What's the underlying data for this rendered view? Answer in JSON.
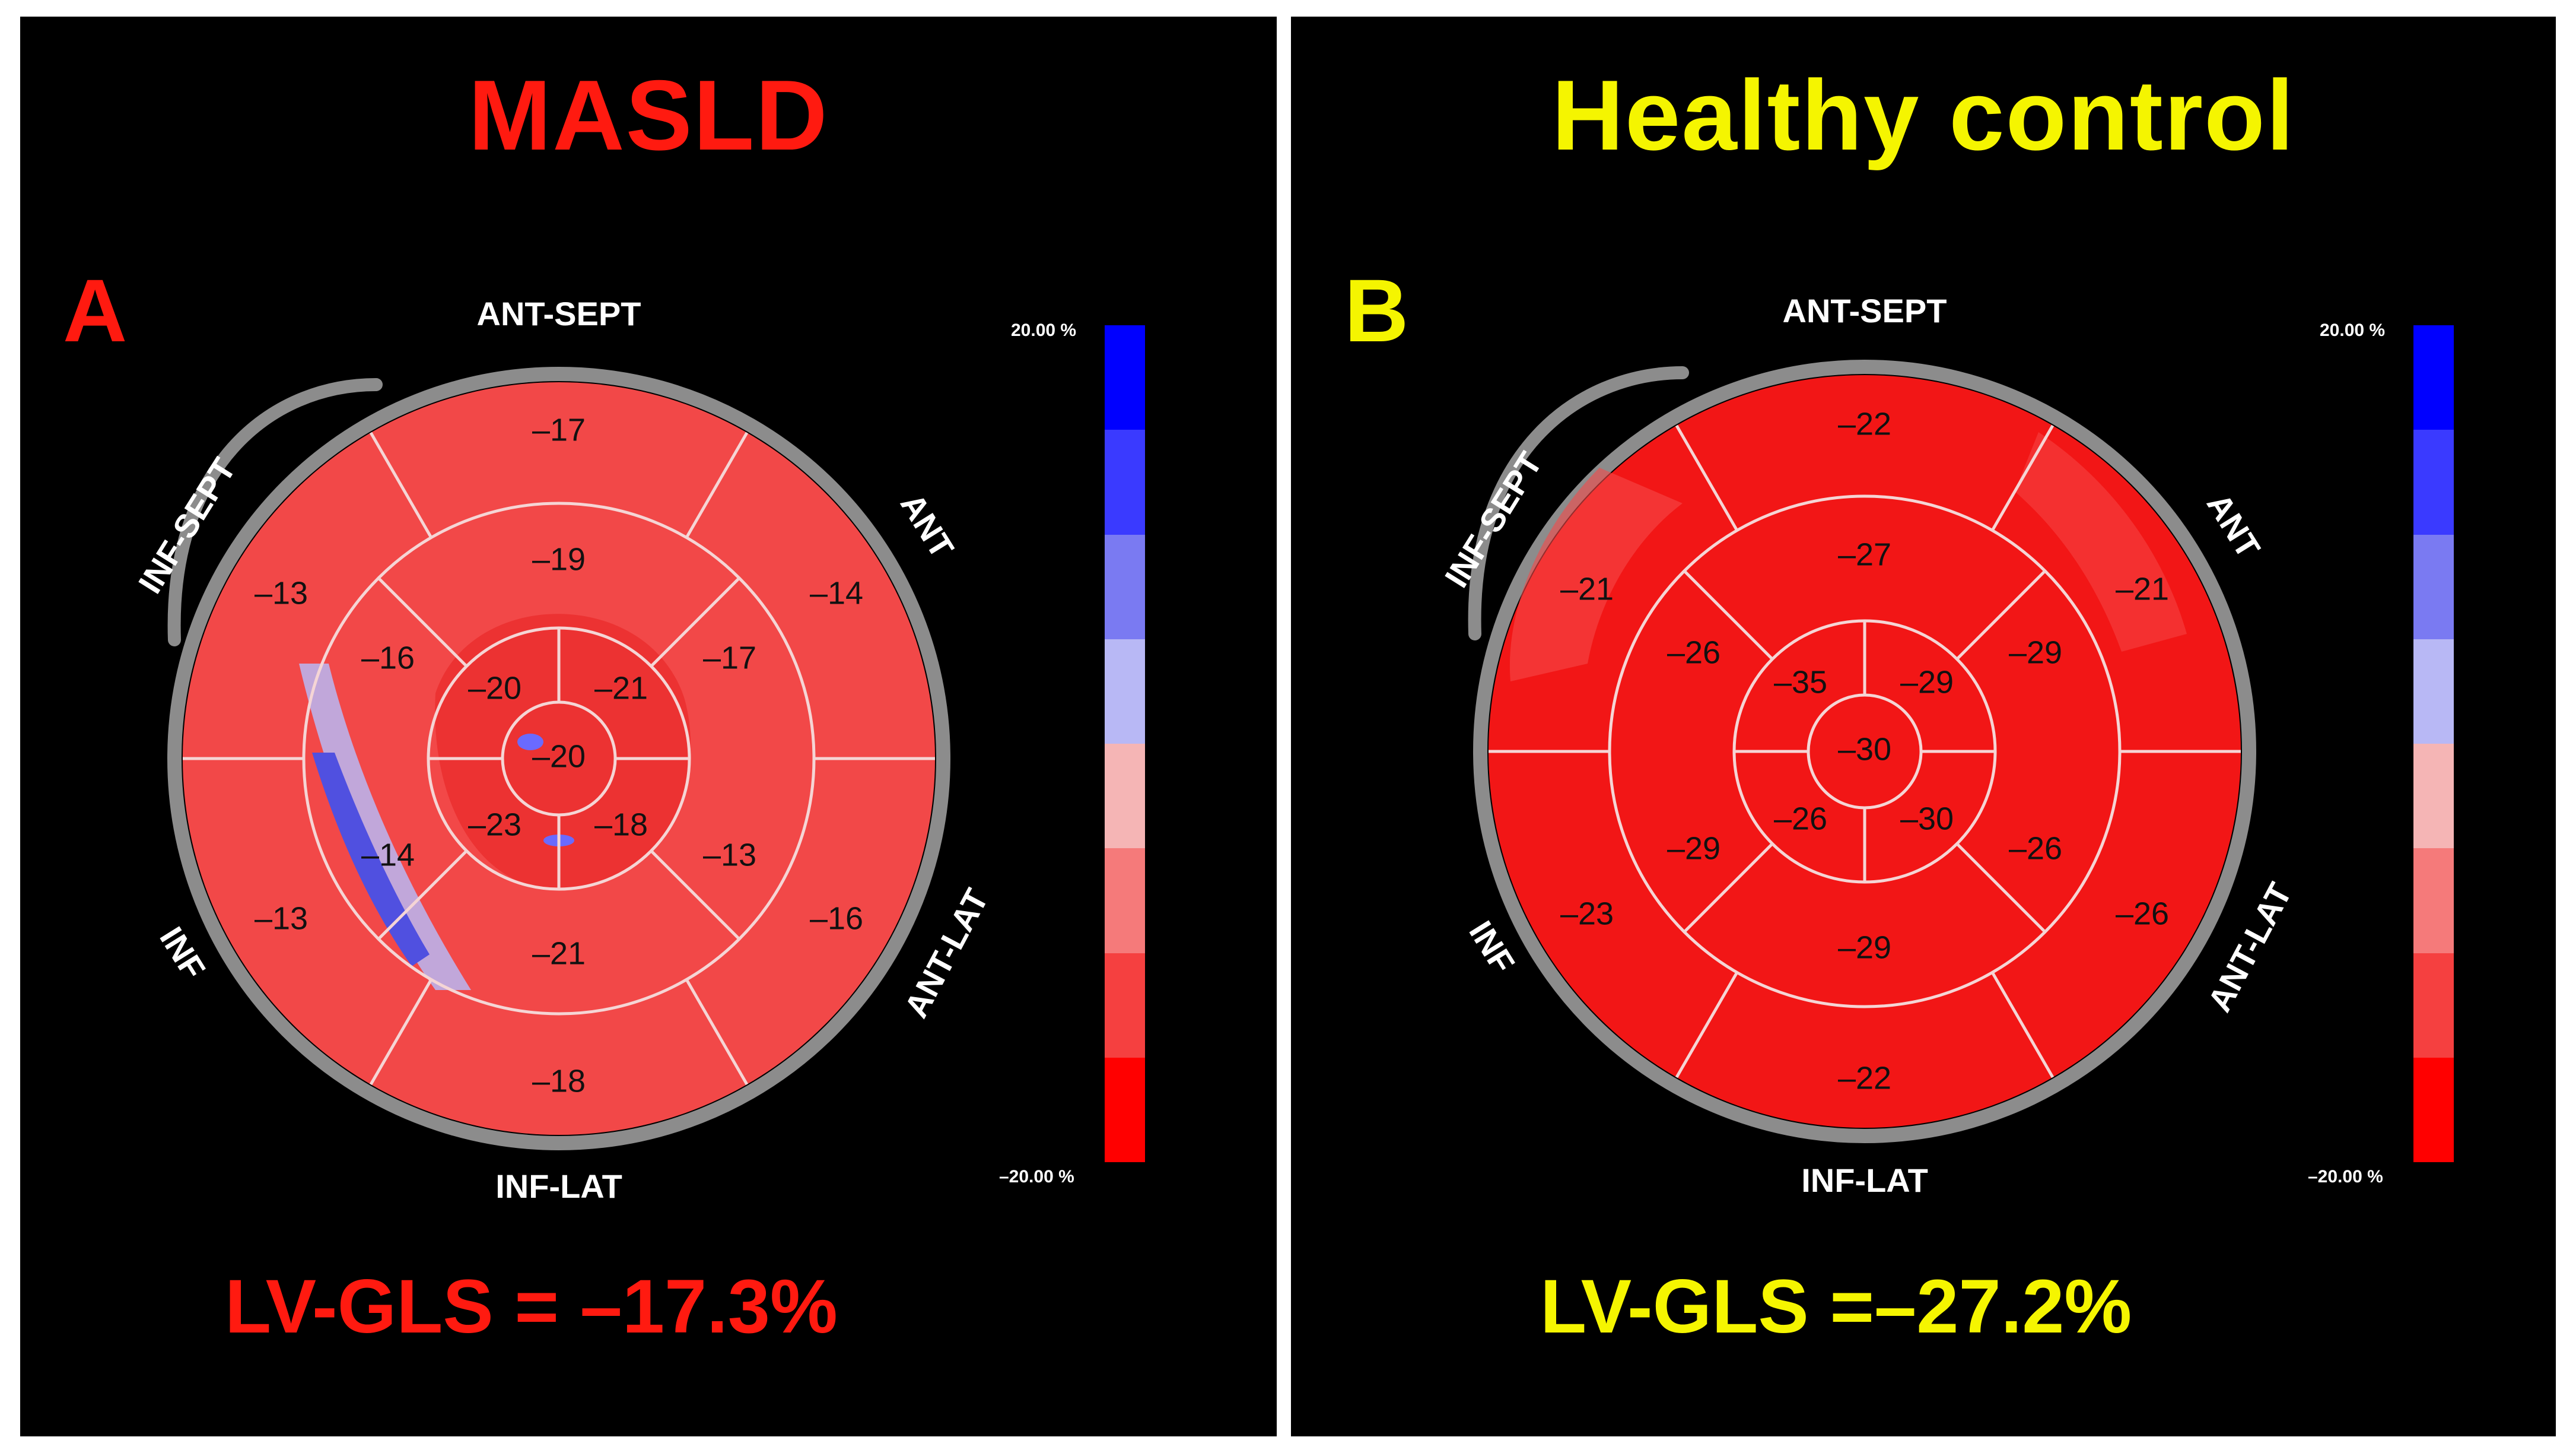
{
  "panels": [
    {
      "title": "MASLD",
      "letter": "A",
      "gls": "LV-GLS = –17.3%",
      "color": "#ff1a10",
      "fill": "#f24848",
      "labels": {
        "ant_sept": "ANT-SEPT",
        "inf_sept": "INF-SEPT",
        "ant": "ANT",
        "inf": "INF",
        "ant_lat": "ANT-LAT",
        "inf_lat": "INF-LAT"
      },
      "segments": {
        "basal": [
          "–17",
          "–14",
          "–16",
          "–18",
          "–13",
          "–13"
        ],
        "mid": [
          "–19",
          "–17",
          "–13",
          "–21",
          "–14",
          "–16"
        ],
        "apical": [
          "–21",
          "–18",
          "–23",
          "–20"
        ],
        "apex": "–20"
      }
    },
    {
      "title": "Healthy control",
      "letter": "B",
      "gls": "LV-GLS =–27.2%",
      "color": "#f5f500",
      "fill": "#f21616",
      "labels": {
        "ant_sept": "ANT-SEPT",
        "inf_sept": "INF-SEPT",
        "ant": "ANT",
        "inf": "INF",
        "ant_lat": "ANT-LAT",
        "inf_lat": "INF-LAT"
      },
      "segments": {
        "basal": [
          "–22",
          "–21",
          "–26",
          "–22",
          "–23",
          "–21"
        ],
        "mid": [
          "–27",
          "–29",
          "–26",
          "–29",
          "–29",
          "–26"
        ],
        "apical": [
          "–29",
          "–30",
          "–26",
          "–35"
        ],
        "apex": "–30"
      }
    }
  ],
  "scale": {
    "top_label": "20.00 %",
    "bottom_label": "–20.00 %",
    "colors": [
      "#0000ff",
      "#3a3aff",
      "#7a7af2",
      "#b8b8f5",
      "#f5b5b5",
      "#f57a7a",
      "#f54040",
      "#ff0000"
    ]
  }
}
